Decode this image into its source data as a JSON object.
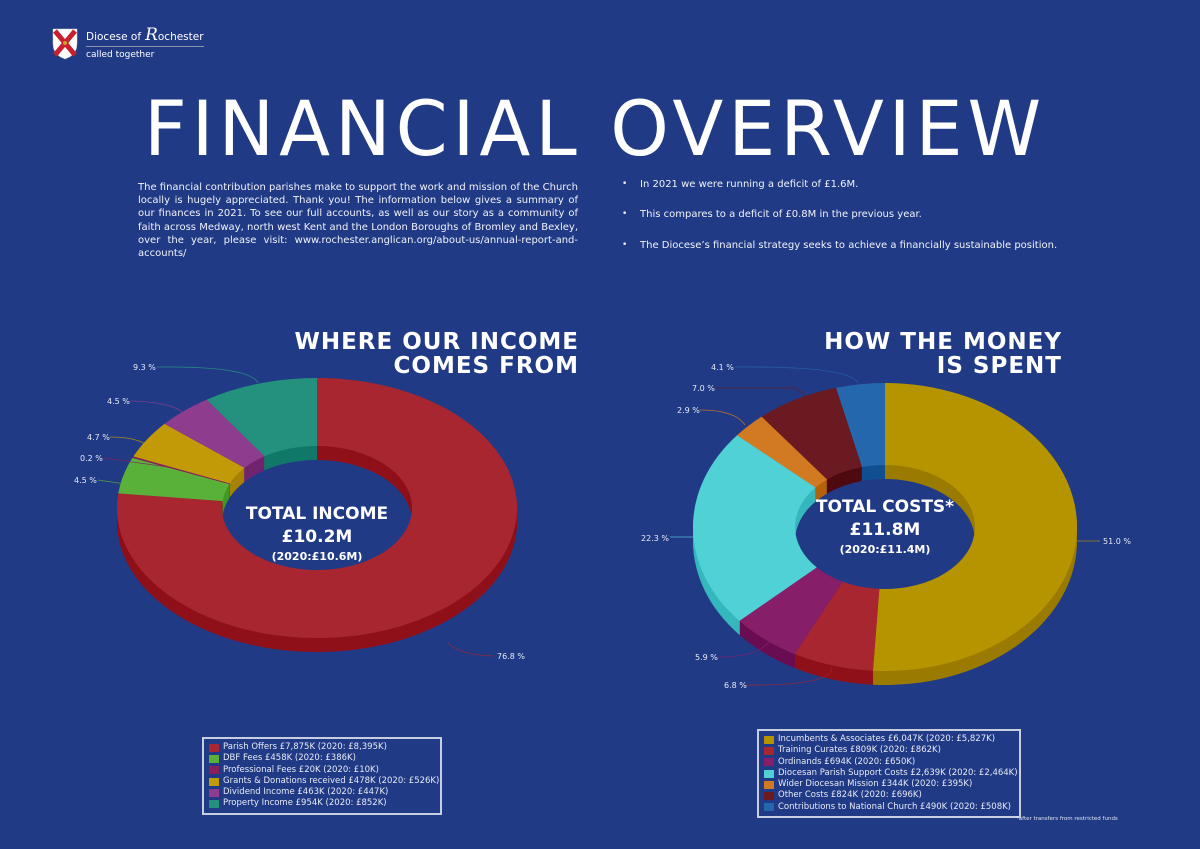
{
  "header": {
    "logo_prefix": "Diocese of",
    "logo_name_initial": "R",
    "logo_name_rest": "ochester",
    "logo_tagline": "called together",
    "title": "FINANCIAL OVERVIEW"
  },
  "intro": {
    "text": "The financial contribution parishes make to support the work and mission of the Church locally is hugely appreciated. Thank you! The information below gives a summary of our finances in 2021. To see our full accounts, as well as our story as a community of faith across Medway, north west Kent and the London Boroughs of Bromley and Bexley, over the year, please visit: www.rochester.anglican.org/about-us/annual-report-and-accounts/"
  },
  "bullets": [
    "In 2021 we were running a deficit of  £1.6M.",
    "This compares to a deficit of £0.8M in the previous year.",
    "The Diocese’s financial strategy seeks to achieve a financially sustainable position."
  ],
  "income": {
    "title_line1": "WHERE OUR INCOME",
    "title_line2": "COMES FROM",
    "center_title": "TOTAL INCOME",
    "center_value": "£10.2M",
    "center_prev": "(2020:£10.6M)"
  },
  "costs": {
    "title_line1": "HOW THE MONEY",
    "title_line2": "IS SPENT",
    "center_title": "TOTAL COSTS*",
    "center_value": "£11.8M",
    "center_prev": "(2020:£11.4M)",
    "footnote": "*after transfers from restricted funds"
  },
  "chart_data": [
    {
      "type": "pie",
      "title": "WHERE OUR INCOME COMES FROM",
      "center_label": "TOTAL INCOME £10.2M (2020:£10.6M)",
      "categories": [
        "Parish Offers",
        "DBF Fees",
        "Professional Fees",
        "Grants & Donations received",
        "Dividend Income",
        "Property Income"
      ],
      "values": [
        76.8,
        4.5,
        0.2,
        4.7,
        4.5,
        9.3
      ],
      "percent_labels": [
        "76.8 %",
        "4.5 %",
        "0.2 %",
        "4.7 %",
        "4.5 %",
        "9.3 %"
      ],
      "amounts_2021_k": [
        7875,
        458,
        20,
        478,
        463,
        954
      ],
      "amounts_2020_k": [
        8395,
        386,
        10,
        526,
        447,
        852
      ],
      "legend": [
        "Parish Offers £7,875K (2020: £8,395K)",
        "DBF Fees £458K (2020: £386K)",
        "Professional Fees £20K (2020: £10K)",
        "Grants & Donations received £478K (2020: £526K)",
        "Dividend Income £463K (2020: £447K)",
        "Property Income £954K (2020: £852K)"
      ],
      "colors": [
        "#a8262f",
        "#5ab13a",
        "#8a1f5e",
        "#c29a07",
        "#8e3c8e",
        "#24907e"
      ],
      "side_colors": [
        "#8f1019",
        "#3f9a24",
        "#6d0f48",
        "#a68200",
        "#70246f",
        "#117868"
      ]
    },
    {
      "type": "pie",
      "title": "HOW THE MONEY IS SPENT",
      "center_label": "TOTAL COSTS* £11.8M (2020:£11.4M)",
      "categories": [
        "Incumbents & Associates",
        "Training Curates",
        "Ordinands",
        "Diocesan Parish Support Costs",
        "Wider Diocesan Mission",
        "Other Costs",
        "Contributions to National Church"
      ],
      "values": [
        51.0,
        6.8,
        5.9,
        22.3,
        2.9,
        7.0,
        4.1
      ],
      "percent_labels": [
        "51.0 %",
        "6.8 %",
        "5.9 %",
        "22.3 %",
        "2.9 %",
        "7.0 %",
        "4.1 %"
      ],
      "amounts_2021_k": [
        6047,
        809,
        694,
        2639,
        344,
        824,
        490
      ],
      "amounts_2020_k": [
        5827,
        862,
        650,
        2464,
        395,
        696,
        508
      ],
      "legend": [
        "Incumbents & Associates £6,047K (2020: £5,827K)",
        "Training Curates £809K (2020: £862K)",
        "Ordinands £694K (2020: £650K)",
        "Diocesan Parish Support Costs £2,639K (2020: £2,464K)",
        "Wider Diocesan Mission £344K (2020: £395K)",
        "Other Costs £824K (2020: £696K)",
        "Contributions to National Church £490K (2020: £508K)"
      ],
      "colors": [
        "#b69400",
        "#a8262f",
        "#861e6a",
        "#4fd1d6",
        "#d27a22",
        "#6a1a20",
        "#2567ad"
      ],
      "side_colors": [
        "#9a7b00",
        "#8f1019",
        "#6b0d52",
        "#35b8be",
        "#b4620d",
        "#4f0a10",
        "#114f91"
      ]
    }
  ]
}
